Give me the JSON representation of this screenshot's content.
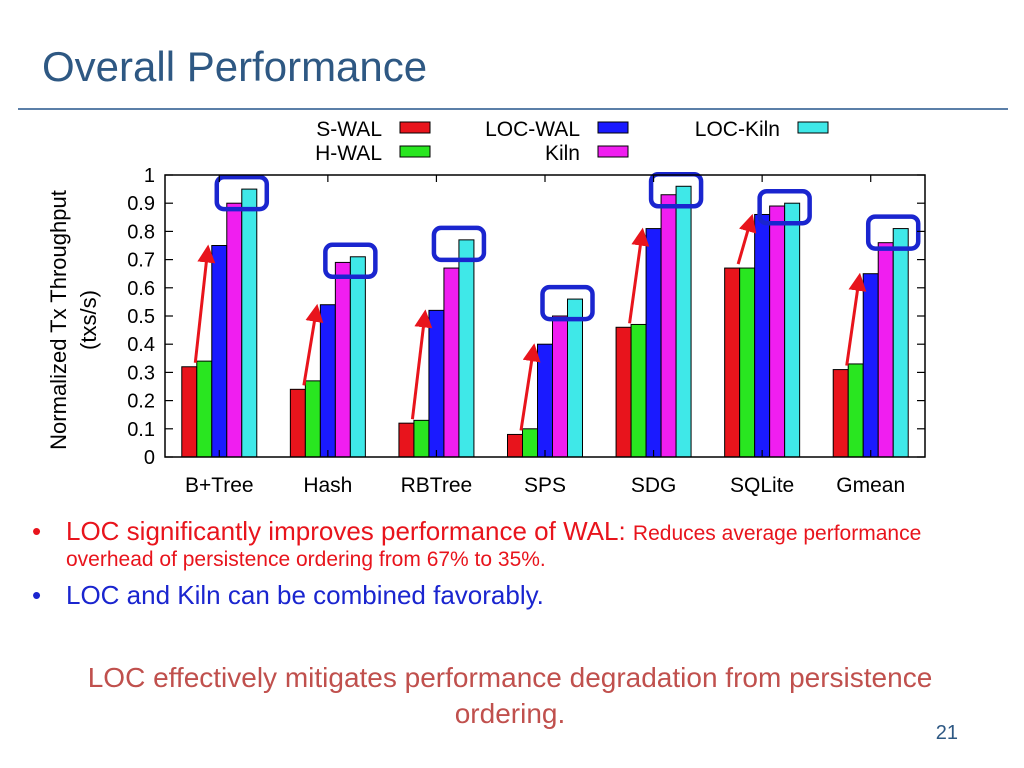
{
  "slide": {
    "title": "Overall Performance",
    "page_number": "21"
  },
  "bullets": [
    {
      "main": "LOC significantly improves performance of WAL: ",
      "sub": "Reduces average performance overhead of persistence ordering from 67% to 35%.",
      "color": "#e8141c"
    },
    {
      "main": "LOC and Kiln can be combined favorably.",
      "color": "#1a25cf"
    }
  ],
  "conclusion": "LOC effectively mitigates performance degradation from persistence ordering.",
  "chart_data": {
    "type": "bar",
    "ylabel_lines": [
      "Normalized Tx Throughput",
      "(txs/s)"
    ],
    "xlabel": "",
    "ylim": [
      0,
      1
    ],
    "yticks": [
      "0",
      "0.1",
      "0.2",
      "0.3",
      "0.4",
      "0.5",
      "0.6",
      "0.7",
      "0.8",
      "0.9",
      "1"
    ],
    "categories": [
      "B+Tree",
      "Hash",
      "RBTree",
      "SPS",
      "SDG",
      "SQLite",
      "Gmean"
    ],
    "legend_position": "top",
    "grid": false,
    "series": [
      {
        "name": "S-WAL",
        "color": "#e8141c",
        "values": [
          0.32,
          0.24,
          0.12,
          0.08,
          0.46,
          0.67,
          0.31
        ]
      },
      {
        "name": "H-WAL",
        "color": "#29e620",
        "values": [
          0.34,
          0.27,
          0.13,
          0.1,
          0.47,
          0.67,
          0.33
        ]
      },
      {
        "name": "LOC-WAL",
        "color": "#1a1aff",
        "values": [
          0.75,
          0.54,
          0.52,
          0.4,
          0.81,
          0.86,
          0.65
        ]
      },
      {
        "name": "Kiln",
        "color": "#f01ef0",
        "values": [
          0.9,
          0.69,
          0.67,
          0.5,
          0.93,
          0.89,
          0.76
        ]
      },
      {
        "name": "LOC-Kiln",
        "color": "#3fe8e8",
        "values": [
          0.95,
          0.71,
          0.77,
          0.56,
          0.96,
          0.9,
          0.81
        ]
      }
    ],
    "annotation_colors": {
      "arrow": "#e8141c",
      "highlight_box": "#1a25cf"
    }
  }
}
